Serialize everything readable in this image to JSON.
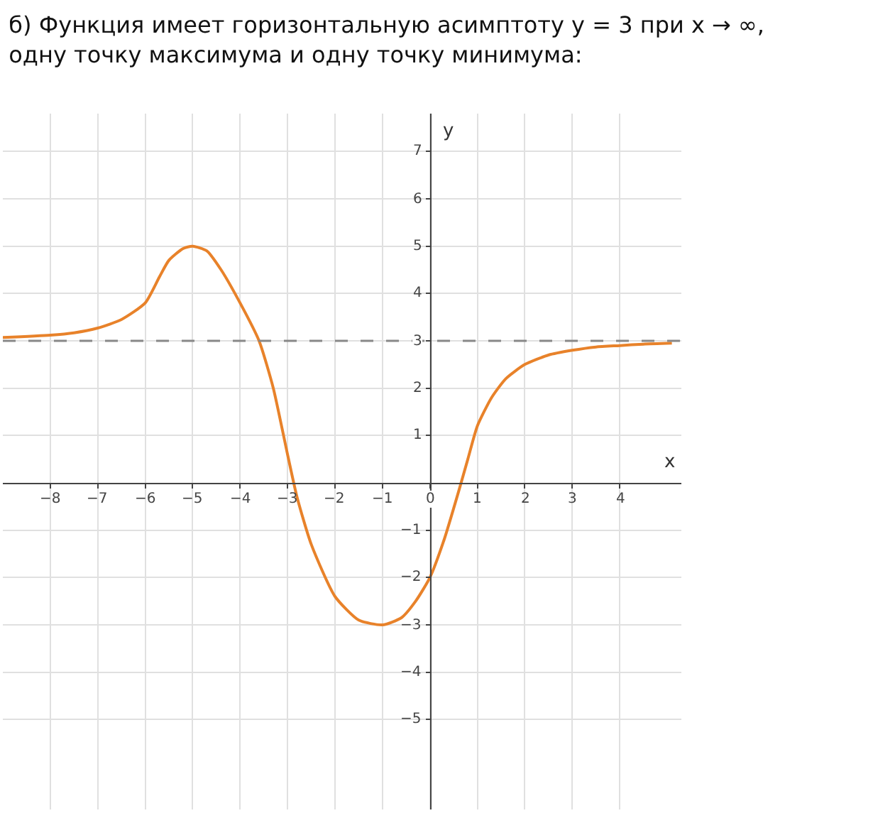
{
  "chart_data": {
    "type": "line",
    "title": "б) Функция имеет горизонтальную асимптоту y = 3 при x → ∞,\nодну точку максимума и одну точку минимума:",
    "xlabel": "x",
    "ylabel": "y",
    "x": [
      -9,
      -8,
      -7.5,
      -7,
      -6.5,
      -6,
      -5.7,
      -5.5,
      -5.2,
      -5,
      -4.7,
      -4.4,
      -4,
      -3.6,
      -3.3,
      -3,
      -2.8,
      -2.5,
      -2,
      -1.5,
      -1,
      -0.6,
      -0.3,
      0,
      0.3,
      0.6,
      0.8,
      1,
      1.3,
      1.6,
      2,
      2.5,
      3,
      3.5,
      4,
      4.5,
      5.1
    ],
    "series": [
      {
        "color": "#e8822a",
        "values": [
          3.07,
          3.12,
          3.17,
          3.27,
          3.45,
          3.8,
          4.35,
          4.7,
          4.95,
          5,
          4.9,
          4.5,
          3.8,
          3.0,
          2.0,
          0.6,
          -0.3,
          -1.3,
          -2.4,
          -2.9,
          -3,
          -2.85,
          -2.5,
          -2,
          -1.2,
          -0.2,
          0.5,
          1.2,
          1.8,
          2.2,
          2.5,
          2.7,
          2.8,
          2.87,
          2.9,
          2.93,
          2.95
        ]
      }
    ],
    "xlim": [
      -9,
      5.3
    ],
    "ylim": [
      -6.9,
      7.8
    ],
    "xticks": [
      -8,
      -7,
      -6,
      -5,
      -4,
      -3,
      -2,
      -1,
      0,
      1,
      2,
      3,
      4
    ],
    "yticks": [
      -5,
      -4,
      -3,
      -2,
      -1,
      1,
      2,
      3,
      4,
      5,
      6,
      7
    ],
    "ref_lines": [
      {
        "axis": "y",
        "value": 3,
        "color": "#888888",
        "line_style": "dashed"
      }
    ],
    "grid": true,
    "marker": "none",
    "line_style": "solid"
  }
}
